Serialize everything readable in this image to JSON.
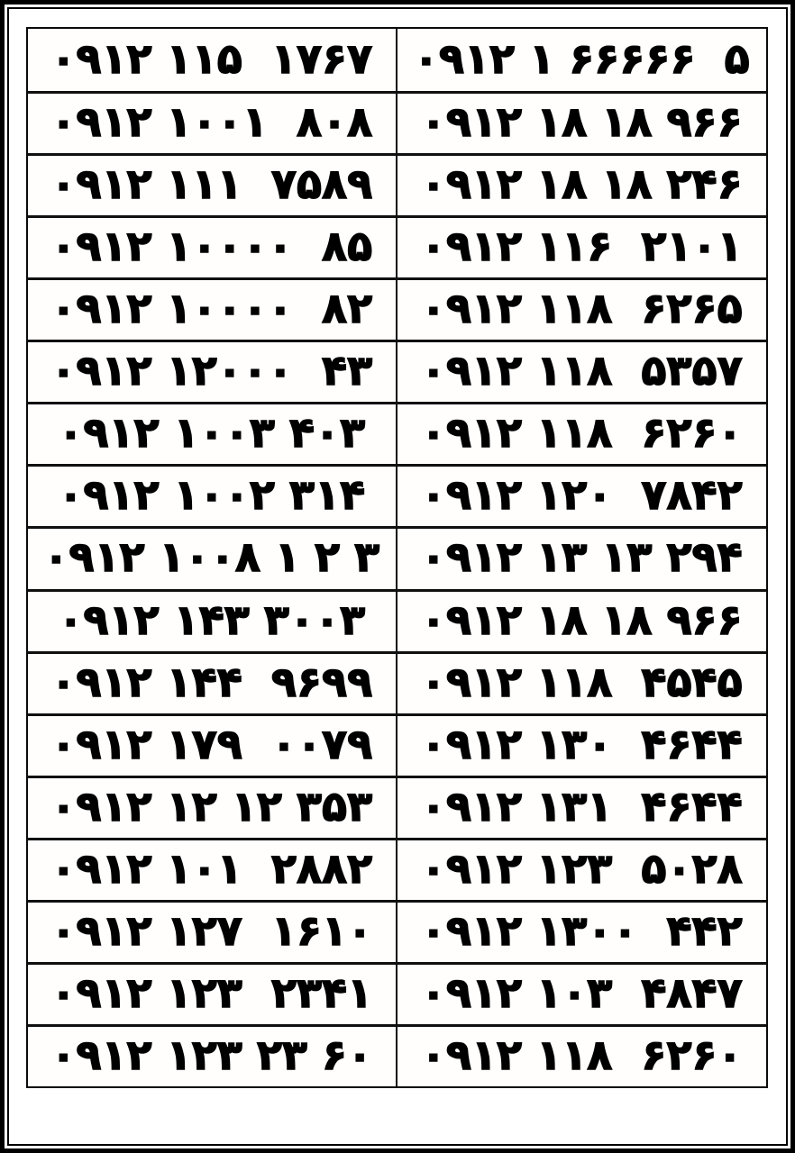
{
  "page": {
    "background_color": "#ffffff",
    "ink_color": "#000000",
    "frame_color": "#000000",
    "description_note": "two-column list of 0912 mobile phone numbers in Persian digits, 17 rows"
  },
  "table": {
    "row_count": 17,
    "column_count": 2,
    "rows": [
      {
        "left": {
          "fa": "۰۹۱۲ ۱۱۵  ۱۷۶۷",
          "en": "0912 115 1767"
        },
        "right": {
          "fa": "۰۹۱۲ ۱ ۶۶۶۶۶  ۵",
          "en": "0912 1 66666 5"
        }
      },
      {
        "left": {
          "fa": "۰۹۱۲ ۱۰۰۱  ۸۰۸",
          "en": "0912 1001 808"
        },
        "right": {
          "fa": "۰۹۱۲ ۱۸ ۱۸ ۹۶۶",
          "en": "0912 18 18 966"
        }
      },
      {
        "left": {
          "fa": "۰۹۱۲ ۱۱۱  ۷۵۸۹",
          "en": "0912 111 7589"
        },
        "right": {
          "fa": "۰۹۱۲ ۱۸ ۱۸ ۲۴۶",
          "en": "0912 18 18 246"
        }
      },
      {
        "left": {
          "fa": "۰۹۱۲ ۱۰۰۰۰  ۸۵",
          "en": "0912 10000 85"
        },
        "right": {
          "fa": "۰۹۱۲ ۱۱۶  ۲۱۰۱",
          "en": "0912 116 2101"
        }
      },
      {
        "left": {
          "fa": "۰۹۱۲ ۱۰۰۰۰  ۸۲",
          "en": "0912 10000 82"
        },
        "right": {
          "fa": "۰۹۱۲ ۱۱۸  ۶۲۶۵",
          "en": "0912 118 6265"
        }
      },
      {
        "left": {
          "fa": "۰۹۱۲ ۱۲۰۰۰  ۴۳",
          "en": "0912 12000 43"
        },
        "right": {
          "fa": "۰۹۱۲ ۱۱۸  ۵۳۵۷",
          "en": "0912 118 5357"
        }
      },
      {
        "left": {
          "fa": "۰۹۱۲ ۱۰۰۳ ۴۰۳",
          "en": "0912 1003 403"
        },
        "right": {
          "fa": "۰۹۱۲ ۱۱۸  ۶۲۶۰",
          "en": "0912 118 6260"
        }
      },
      {
        "left": {
          "fa": "۰۹۱۲ ۱۰۰۲ ۳۱۴",
          "en": "0912 1002 314"
        },
        "right": {
          "fa": "۰۹۱۲ ۱۲۰  ۷۸۴۲",
          "en": "0912 120 7842"
        }
      },
      {
        "left": {
          "fa": "۰۹۱۲ ۱۰۰۸ ۱ ۲ ۳",
          "en": "0912 1008 1 2 3"
        },
        "right": {
          "fa": "۰۹۱۲ ۱۳ ۱۳ ۲۹۴",
          "en": "0912 13 13 294"
        }
      },
      {
        "left": {
          "fa": "۰۹۱۲ ۱۴۳ ۳۰۰۳",
          "en": "0912 143 3003"
        },
        "right": {
          "fa": "۰۹۱۲ ۱۸ ۱۸ ۹۶۶",
          "en": "0912 18 18 966"
        }
      },
      {
        "left": {
          "fa": "۰۹۱۲ ۱۴۴  ۹۶۹۹",
          "en": "0912 144 9699"
        },
        "right": {
          "fa": "۰۹۱۲ ۱۱۸  ۴۵۴۵",
          "en": "0912 118 4545"
        }
      },
      {
        "left": {
          "fa": "۰۹۱۲ ۱۷۹  ۰۰۷۹",
          "en": "0912 179 0079"
        },
        "right": {
          "fa": "۰۹۱۲ ۱۳۰  ۴۶۴۴",
          "en": "0912 130 4644"
        }
      },
      {
        "left": {
          "fa": "۰۹۱۲ ۱۲ ۱۲ ۳۵۳",
          "en": "0912 12 12 353"
        },
        "right": {
          "fa": "۰۹۱۲ ۱۳۱  ۴۶۴۴",
          "en": "0912 131 4644"
        }
      },
      {
        "left": {
          "fa": "۰۹۱۲ ۱۰۱  ۲۸۸۲",
          "en": "0912 101 2882"
        },
        "right": {
          "fa": "۰۹۱۲ ۱۲۳  ۵۰۲۸",
          "en": "0912 123 5028"
        }
      },
      {
        "left": {
          "fa": "۰۹۱۲ ۱۲۷  ۱۶۱۰",
          "en": "0912 127 1610"
        },
        "right": {
          "fa": "۰۹۱۲ ۱۳۰۰  ۴۴۲",
          "en": "0912 1300 442"
        }
      },
      {
        "left": {
          "fa": "۰۹۱۲ ۱۲۳  ۲۳۴۱",
          "en": "0912 123 2341"
        },
        "right": {
          "fa": "۰۹۱۲ ۱۰۳  ۴۸۴۷",
          "en": "0912 103 4847"
        }
      },
      {
        "left": {
          "fa": "۰۹۱۲ ۱۲۳ ۲۳ ۶۰",
          "en": "0912 123 23 60"
        },
        "right": {
          "fa": "۰۹۱۲ ۱۱۸  ۶۲۶۰",
          "en": "0912 118 6260"
        }
      }
    ]
  }
}
